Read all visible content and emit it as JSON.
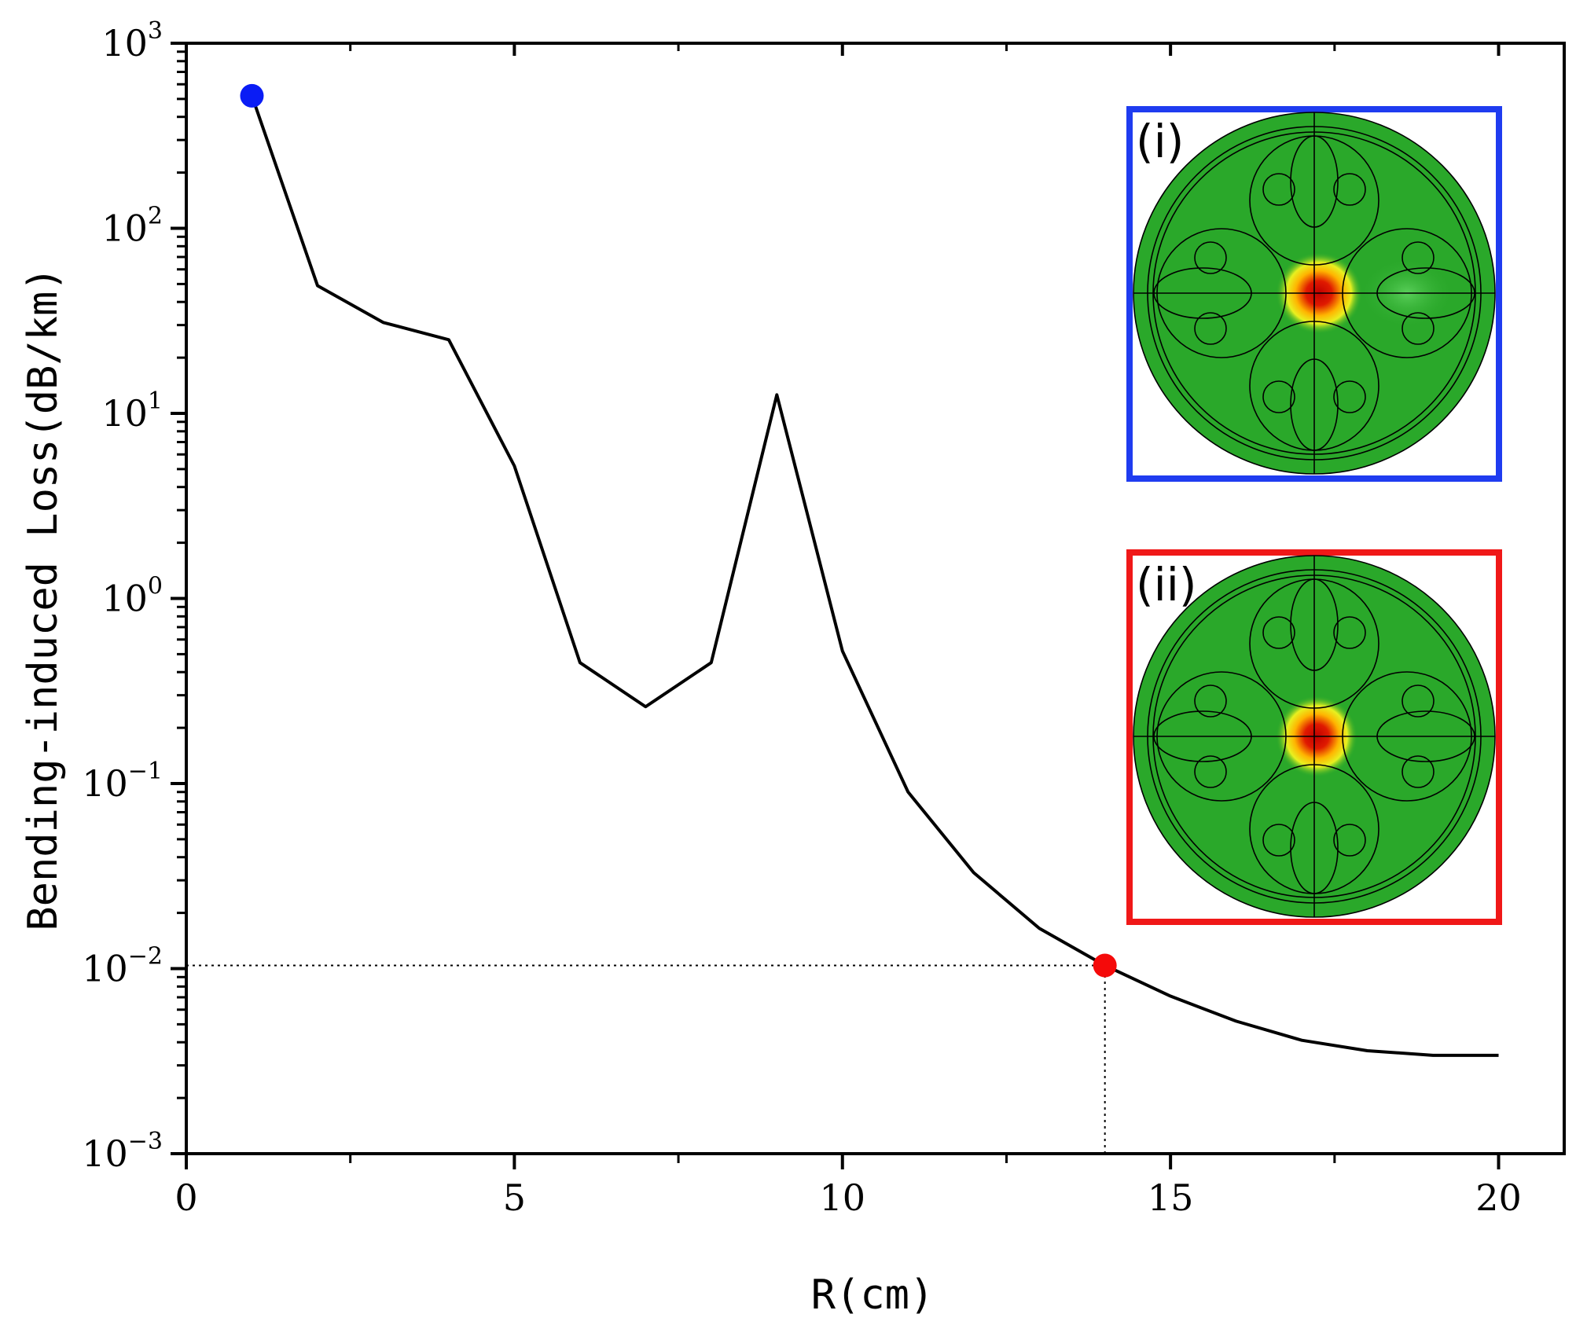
{
  "chart_data": {
    "type": "line",
    "title": "",
    "xlabel": "R(cm)",
    "ylabel": "Bending-induced Loss(dB/km)",
    "xlim": [
      0,
      21
    ],
    "ylim": [
      0.001,
      1000
    ],
    "yscale": "log",
    "x_ticks": [
      {
        "value": 0,
        "label": "0"
      },
      {
        "value": 5,
        "label": "5"
      },
      {
        "value": 10,
        "label": "10"
      },
      {
        "value": 15,
        "label": "15"
      },
      {
        "value": 20,
        "label": "20"
      }
    ],
    "y_ticks": [
      {
        "value": 1000,
        "base": "10",
        "exp": "3"
      },
      {
        "value": 100,
        "base": "10",
        "exp": "2"
      },
      {
        "value": 10,
        "base": "10",
        "exp": "1"
      },
      {
        "value": 1,
        "base": "10",
        "exp": "0"
      },
      {
        "value": 0.1,
        "base": "10",
        "exp": "−1"
      },
      {
        "value": 0.01,
        "base": "10",
        "exp": "−2"
      },
      {
        "value": 0.001,
        "base": "10",
        "exp": "−3"
      }
    ],
    "series": [
      {
        "name": "Bending-induced Loss",
        "color": "#000000",
        "x": [
          1,
          2,
          3,
          4,
          5,
          6,
          7,
          8,
          9,
          10,
          11,
          12,
          13,
          14,
          15,
          16,
          17,
          18,
          19,
          20
        ],
        "y": [
          520,
          49,
          31,
          25,
          5.2,
          0.45,
          0.26,
          0.45,
          12.6,
          0.52,
          0.09,
          0.033,
          0.0165,
          0.0104,
          0.0071,
          0.0052,
          0.0041,
          0.0036,
          0.0034,
          0.0034
        ]
      }
    ],
    "highlight_points": [
      {
        "name": "point-i",
        "x": 1,
        "y": 520,
        "color": "#0a1cf5"
      },
      {
        "name": "point-ii",
        "x": 14,
        "y": 0.0104,
        "color": "#f50a0a"
      }
    ],
    "reference_lines": [
      {
        "type": "horizontal",
        "y": 0.0104,
        "x_from": 0,
        "x_to": 14,
        "style": "dotted"
      },
      {
        "type": "vertical",
        "x": 14,
        "y_from": 0.001,
        "y_to": 0.0104,
        "style": "dotted"
      }
    ],
    "insets": [
      {
        "label": "(i)",
        "frame_color": "#1f3cf0",
        "description_mode": "mode field with leakage into right cladding"
      },
      {
        "label": "(ii)",
        "frame_color": "#f01818",
        "description_mode": "confined core mode"
      }
    ]
  }
}
